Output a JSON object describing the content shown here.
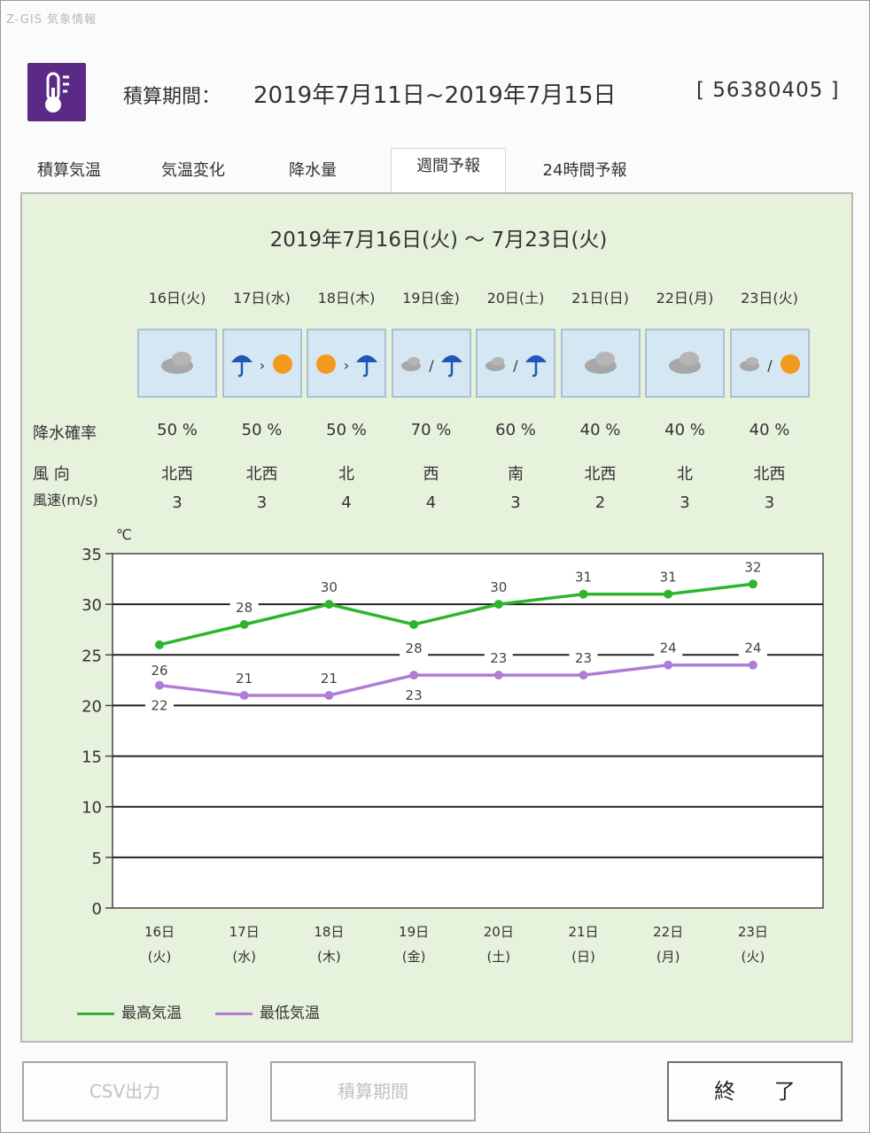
{
  "window": {
    "title": "Z-GIS 気象情報"
  },
  "header": {
    "period_label": "積算期間：",
    "period_value": "2019年7月11日~2019年7月15日",
    "id_label": "[ 56380405 ]"
  },
  "tabs": [
    "積算気温",
    "気温変化",
    "降水量",
    "週間予報",
    "24時間予報"
  ],
  "active_tab": "週間予報",
  "forecast": {
    "title": "2019年7月16日(火) ～ 7月23日(火)",
    "labels": {
      "precip": "降水確率",
      "wind_dir": "風 向",
      "wind_speed": "風速(m/s)"
    },
    "days": [
      {
        "date": "16日(火)",
        "weather": [
          "cloud"
        ],
        "sep": "",
        "precip": "50 %",
        "wind_dir": "北西",
        "wind_speed": "3",
        "axis_day": "16日",
        "axis_wd": "(火)"
      },
      {
        "date": "17日(水)",
        "weather": [
          "rain",
          "sun"
        ],
        "sep": "›",
        "precip": "50 %",
        "wind_dir": "北西",
        "wind_speed": "3",
        "axis_day": "17日",
        "axis_wd": "(水)"
      },
      {
        "date": "18日(木)",
        "weather": [
          "sun",
          "rain"
        ],
        "sep": "›",
        "precip": "50 %",
        "wind_dir": "北",
        "wind_speed": "4",
        "axis_day": "18日",
        "axis_wd": "(木)"
      },
      {
        "date": "19日(金)",
        "weather": [
          "cloud",
          "rain"
        ],
        "sep": "/",
        "precip": "70 %",
        "wind_dir": "西",
        "wind_speed": "4",
        "axis_day": "19日",
        "axis_wd": "(金)"
      },
      {
        "date": "20日(土)",
        "weather": [
          "cloud",
          "rain"
        ],
        "sep": "/",
        "precip": "60 %",
        "wind_dir": "南",
        "wind_speed": "3",
        "axis_day": "20日",
        "axis_wd": "(土)"
      },
      {
        "date": "21日(日)",
        "weather": [
          "cloud"
        ],
        "sep": "",
        "precip": "40 %",
        "wind_dir": "北西",
        "wind_speed": "2",
        "axis_day": "21日",
        "axis_wd": "(日)"
      },
      {
        "date": "22日(月)",
        "weather": [
          "cloud"
        ],
        "sep": "",
        "precip": "40 %",
        "wind_dir": "北",
        "wind_speed": "3",
        "axis_day": "22日",
        "axis_wd": "(月)"
      },
      {
        "date": "23日(火)",
        "weather": [
          "cloud",
          "sun"
        ],
        "sep": "/",
        "precip": "40 %",
        "wind_dir": "北西",
        "wind_speed": "3",
        "axis_day": "23日",
        "axis_wd": "(火)"
      }
    ]
  },
  "chart_data": {
    "type": "line",
    "ylabel": "℃",
    "ylim": [
      0,
      35
    ],
    "yticks": [
      0,
      5,
      10,
      15,
      20,
      25,
      30,
      35
    ],
    "grid": true,
    "legend_position": "bottom-left",
    "categories": [
      "16日(火)",
      "17日(水)",
      "18日(木)",
      "19日(金)",
      "20日(土)",
      "21日(日)",
      "22日(月)",
      "23日(火)"
    ],
    "series": [
      {
        "name": "最高気温",
        "color": "#2db52d",
        "values": [
          26,
          28,
          30,
          28,
          30,
          31,
          31,
          32
        ]
      },
      {
        "name": "最低気温",
        "color": "#b07cd6",
        "values": [
          22,
          21,
          21,
          23,
          23,
          23,
          24,
          24
        ]
      }
    ]
  },
  "buttons": {
    "csv": "CSV出力",
    "period": "積算期間",
    "exit": "終 了"
  },
  "colors": {
    "icon_bg": "#5b2a86",
    "panel_bg": "#e7f2dd",
    "weather_bg": "#d6e7f4"
  }
}
